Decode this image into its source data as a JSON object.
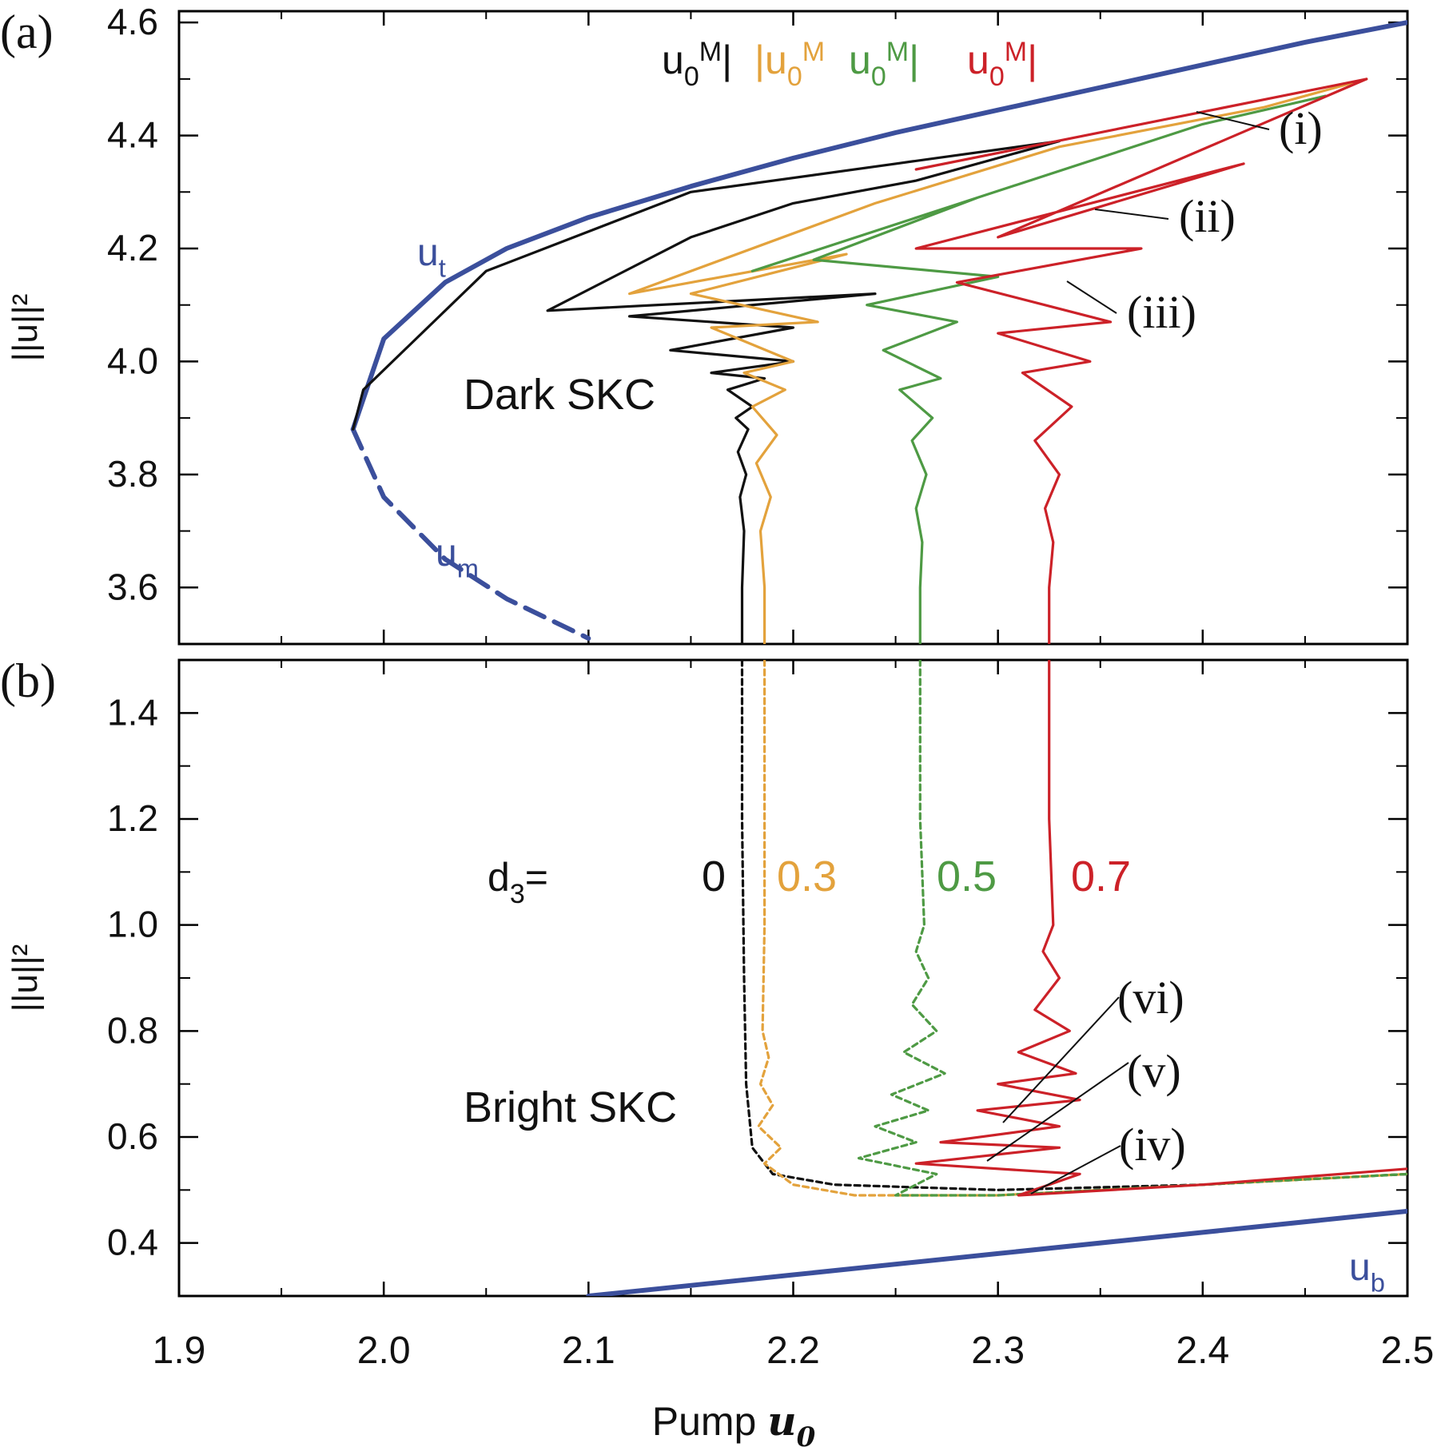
{
  "colors": {
    "blue": "#3b4f9c",
    "black": "#111111",
    "orange": "#e3a23c",
    "green": "#4e9a44",
    "red": "#cc2128"
  },
  "chart_data": [
    {
      "id": "panel-a",
      "type": "line",
      "panel_label": "(a)",
      "ylabel": "||u||²",
      "xlim": [
        1.9,
        2.5
      ],
      "ylim": [
        3.5,
        4.62
      ],
      "yticks": [
        3.6,
        3.8,
        4.0,
        4.2,
        4.4,
        4.6
      ],
      "ytick_labels": [
        "3.6",
        "3.8",
        "4.0",
        "4.2",
        "4.4",
        "4.6"
      ],
      "annotation": "Dark SKC",
      "curve_labels": [
        {
          "text": "u",
          "sub": "t",
          "color": "blue"
        },
        {
          "text": "u",
          "sub": "m",
          "color": "blue"
        }
      ],
      "saddle_node_labels": [
        {
          "prefix": "",
          "text": "u",
          "sub": "0",
          "sup": "M",
          "suffix": "|",
          "color": "black"
        },
        {
          "prefix": "|",
          "text": "u",
          "sub": "0",
          "sup": "M",
          "suffix": "",
          "color": "orange"
        },
        {
          "prefix": "",
          "text": "u",
          "sub": "0",
          "sup": "M",
          "suffix": "|",
          "color": "green"
        },
        {
          "prefix": "",
          "text": "u",
          "sub": "0",
          "sup": "M",
          "suffix": "|",
          "color": "red"
        }
      ],
      "point_labels": [
        "(i)",
        "(ii)",
        "(iii)"
      ],
      "series": [
        {
          "name": "u_t (upper HSS)",
          "color": "blue",
          "style": "solid",
          "x": [
            1.985,
            2.0,
            2.03,
            2.06,
            2.1,
            2.15,
            2.2,
            2.25,
            2.3,
            2.35,
            2.4,
            2.45,
            2.5
          ],
          "y": [
            3.88,
            4.04,
            4.14,
            4.2,
            4.255,
            4.31,
            4.36,
            4.405,
            4.445,
            4.485,
            4.525,
            4.565,
            4.6
          ]
        },
        {
          "name": "u_m (middle HSS)",
          "color": "blue",
          "style": "dashed",
          "x": [
            1.985,
            2.0,
            2.03,
            2.06,
            2.1
          ],
          "y": [
            3.88,
            3.76,
            3.65,
            3.58,
            3.51
          ]
        },
        {
          "name": "d3=0 (dark)",
          "color": "black",
          "style": "solid",
          "x": [
            2.175,
            2.175,
            2.176,
            2.174,
            2.177,
            2.173,
            2.178,
            2.172,
            2.18,
            2.168,
            2.186,
            2.16,
            2.2,
            2.14,
            2.2,
            2.12,
            2.24,
            2.08,
            2.15,
            2.2,
            2.26,
            2.33,
            2.25,
            2.15,
            2.05,
            1.99,
            1.985
          ],
          "y": [
            3.5,
            3.6,
            3.7,
            3.76,
            3.8,
            3.84,
            3.88,
            3.9,
            3.92,
            3.95,
            3.97,
            3.98,
            4.0,
            4.02,
            4.06,
            4.08,
            4.12,
            4.09,
            4.22,
            4.28,
            4.32,
            4.39,
            4.35,
            4.3,
            4.16,
            3.95,
            3.88
          ]
        },
        {
          "name": "d3=0.3 (dark)",
          "color": "orange",
          "style": "solid",
          "x": [
            2.186,
            2.186,
            2.184,
            2.189,
            2.182,
            2.192,
            2.18,
            2.196,
            2.176,
            2.2,
            2.16,
            2.212,
            2.15,
            2.226,
            2.12,
            2.24,
            2.33,
            2.43,
            2.48
          ],
          "y": [
            3.5,
            3.6,
            3.7,
            3.76,
            3.82,
            3.87,
            3.92,
            3.95,
            3.98,
            4.0,
            4.06,
            4.07,
            4.12,
            4.19,
            4.12,
            4.28,
            4.38,
            4.45,
            4.5
          ]
        },
        {
          "name": "d3=0.5 (dark)",
          "color": "green",
          "style": "solid",
          "x": [
            2.262,
            2.262,
            2.263,
            2.26,
            2.265,
            2.258,
            2.268,
            2.252,
            2.272,
            2.244,
            2.28,
            2.236,
            2.3,
            2.21,
            2.29,
            2.18,
            2.4,
            2.46
          ],
          "y": [
            3.5,
            3.6,
            3.68,
            3.74,
            3.8,
            3.86,
            3.9,
            3.95,
            3.97,
            4.02,
            4.07,
            4.1,
            4.15,
            4.18,
            4.29,
            4.16,
            4.42,
            4.47
          ]
        },
        {
          "name": "d3=0.7 (dark)",
          "color": "red",
          "style": "solid",
          "x": [
            2.325,
            2.325,
            2.327,
            2.323,
            2.33,
            2.318,
            2.336,
            2.312,
            2.345,
            2.3,
            2.355,
            2.28,
            2.37,
            2.26,
            2.42,
            2.3,
            2.48,
            2.26
          ],
          "y": [
            3.5,
            3.6,
            3.68,
            3.74,
            3.8,
            3.86,
            3.92,
            3.98,
            4.0,
            4.05,
            4.07,
            4.14,
            4.2,
            4.2,
            4.35,
            4.22,
            4.5,
            4.34
          ]
        }
      ]
    },
    {
      "id": "panel-b",
      "type": "line",
      "panel_label": "(b)",
      "xlabel_text": "Pump",
      "xlabel_var": "u",
      "xlabel_sub": "0",
      "ylabel": "||u||²",
      "xlim": [
        1.9,
        2.5
      ],
      "ylim": [
        0.3,
        1.5
      ],
      "xticks": [
        1.9,
        2.0,
        2.1,
        2.2,
        2.3,
        2.4,
        2.5
      ],
      "xtick_labels": [
        "1.9",
        "2.0",
        "2.1",
        "2.2",
        "2.3",
        "2.4",
        "2.5"
      ],
      "yticks": [
        0.4,
        0.6,
        0.8,
        1.0,
        1.2,
        1.4
      ],
      "ytick_labels": [
        "0.4",
        "0.6",
        "0.8",
        "1.0",
        "1.2",
        "1.4"
      ],
      "annotation": "Bright SKC",
      "d3_label": {
        "text": "d",
        "sub": "3",
        "suffix": "="
      },
      "d3_values": [
        {
          "text": "0",
          "color": "black"
        },
        {
          "text": "0.3",
          "color": "orange"
        },
        {
          "text": "0.5",
          "color": "green"
        },
        {
          "text": "0.7",
          "color": "red"
        }
      ],
      "curve_labels": [
        {
          "text": "u",
          "sub": "b",
          "color": "blue"
        }
      ],
      "point_labels": [
        "(vi)",
        "(v)",
        "(iv)"
      ],
      "series": [
        {
          "name": "u_b (lower HSS)",
          "color": "blue",
          "style": "solid",
          "x": [
            2.1,
            2.2,
            2.3,
            2.4,
            2.5
          ],
          "y": [
            0.3,
            0.34,
            0.38,
            0.42,
            0.46
          ]
        },
        {
          "name": "d3=0 (bright)",
          "color": "black",
          "style": "dashed",
          "x": [
            2.175,
            2.175,
            2.176,
            2.177,
            2.18,
            2.19,
            2.22,
            2.3,
            2.4,
            2.5
          ],
          "y": [
            1.5,
            1.2,
            0.9,
            0.7,
            0.58,
            0.53,
            0.51,
            0.5,
            0.51,
            0.53
          ]
        },
        {
          "name": "d3=0.3 (bright)",
          "color": "orange",
          "style": "dashed",
          "x": [
            2.186,
            2.186,
            2.185,
            2.188,
            2.184,
            2.19,
            2.183,
            2.194,
            2.186,
            2.2,
            2.23,
            2.3,
            2.4,
            2.5
          ],
          "y": [
            1.5,
            1.0,
            0.8,
            0.75,
            0.7,
            0.66,
            0.62,
            0.58,
            0.55,
            0.51,
            0.49,
            0.49,
            0.51,
            0.53
          ]
        },
        {
          "name": "d3=0.5 (bright)",
          "color": "green",
          "style": "dashed",
          "x": [
            2.262,
            2.262,
            2.264,
            2.26,
            2.266,
            2.258,
            2.27,
            2.254,
            2.274,
            2.248,
            2.266,
            2.24,
            2.26,
            2.232,
            2.27,
            2.25,
            2.3,
            2.4,
            2.5
          ],
          "y": [
            1.5,
            1.2,
            1.0,
            0.95,
            0.9,
            0.85,
            0.8,
            0.76,
            0.72,
            0.68,
            0.65,
            0.62,
            0.59,
            0.56,
            0.53,
            0.49,
            0.49,
            0.51,
            0.53
          ]
        },
        {
          "name": "d3=0.7 (bright)",
          "color": "red",
          "style": "solid",
          "x": [
            2.325,
            2.325,
            2.327,
            2.322,
            2.33,
            2.318,
            2.335,
            2.31,
            2.338,
            2.3,
            2.34,
            2.29,
            2.33,
            2.272,
            2.33,
            2.26,
            2.34,
            2.31,
            2.4,
            2.5
          ],
          "y": [
            1.5,
            1.2,
            1.0,
            0.95,
            0.9,
            0.84,
            0.8,
            0.76,
            0.72,
            0.7,
            0.67,
            0.65,
            0.62,
            0.59,
            0.58,
            0.55,
            0.53,
            0.49,
            0.51,
            0.54
          ]
        }
      ]
    }
  ]
}
